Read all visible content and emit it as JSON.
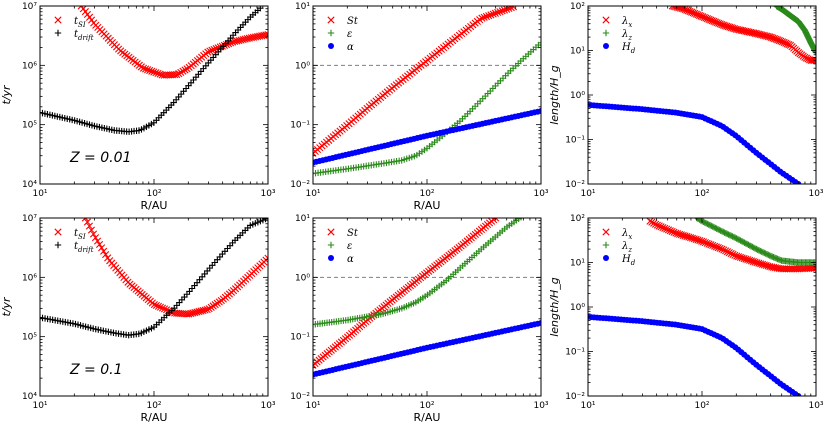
{
  "figure": {
    "colors": {
      "red": "#ff0000",
      "green": "#2a8a1a",
      "blue": "#0000ff",
      "black": "#000000",
      "ref": "#808080"
    }
  },
  "chart_data": [
    {
      "id": "p1",
      "type": "scatter",
      "row": 0,
      "col": 0,
      "xlabel": "R/AU",
      "ylabel": "t/yr",
      "xlim": [
        10,
        1000
      ],
      "ylim": [
        10000,
        10000000
      ],
      "xscale": "log",
      "yscale": "log",
      "xticklabels": [
        "10¹",
        "10²",
        "10³"
      ],
      "yticklabels": [
        "10⁴",
        "10⁵",
        "10⁶",
        "10⁷"
      ],
      "annotation": "Z = 0.01",
      "legend_position": "top-left",
      "series": [
        {
          "name": "t_SI",
          "label": "t",
          "sub": "SI",
          "marker": "x",
          "color": "red",
          "x": [
            23,
            30,
            50,
            80,
            120,
            160,
            200,
            300,
            500,
            700,
            1000
          ],
          "y": [
            10000000,
            5000000,
            1800000,
            900000,
            680000,
            700000,
            900000,
            1700000,
            2500000,
            2900000,
            3300000
          ]
        },
        {
          "name": "t_drift",
          "label": "t",
          "sub": "drift",
          "marker": "+",
          "color": "black",
          "x": [
            10,
            20,
            30,
            45,
            60,
            75,
            100,
            150,
            200,
            300,
            500,
            700,
            900
          ],
          "y": [
            160000,
            118000,
            95000,
            80000,
            76000,
            80000,
            108000,
            240000,
            450000,
            1100000,
            3300000,
            6500000,
            10000000
          ]
        }
      ]
    },
    {
      "id": "p2",
      "type": "scatter",
      "row": 0,
      "col": 1,
      "xlabel": "R/AU",
      "ylabel": "",
      "xlim": [
        10,
        1000
      ],
      "ylim": [
        0.01,
        10
      ],
      "xscale": "log",
      "yscale": "log",
      "xticklabels": [
        "10¹",
        "10²",
        "10³"
      ],
      "yticklabels": [
        "10⁻²",
        "10⁻¹",
        "10⁰",
        "10¹"
      ],
      "reference_line": 1,
      "legend_position": "top-left",
      "series": [
        {
          "name": "St",
          "label": "St",
          "sub": "",
          "marker": "x",
          "color": "red",
          "x": [
            10,
            20,
            30,
            50,
            100,
            200,
            300,
            600
          ],
          "y": [
            0.033,
            0.098,
            0.19,
            0.42,
            1.2,
            3.4,
            6.2,
            10
          ]
        },
        {
          "name": "epsilon",
          "label": "ε",
          "sub": "",
          "marker": "+",
          "color": "green",
          "x": [
            10,
            20,
            40,
            60,
            80,
            100,
            150,
            200,
            300,
            500,
            700,
            1000
          ],
          "y": [
            0.015,
            0.018,
            0.022,
            0.025,
            0.03,
            0.04,
            0.075,
            0.12,
            0.26,
            0.7,
            1.3,
            2.4
          ]
        },
        {
          "name": "alpha",
          "label": "α",
          "sub": "",
          "marker": "o",
          "color": "blue",
          "x": [
            10,
            100,
            1000
          ],
          "y": [
            0.023,
            0.065,
            0.17
          ]
        }
      ]
    },
    {
      "id": "p3",
      "type": "scatter",
      "row": 0,
      "col": 2,
      "xlabel": "",
      "ylabel": "length/H_g",
      "xlim": [
        10,
        1000
      ],
      "ylim": [
        0.01,
        100
      ],
      "xscale": "log",
      "yscale": "log",
      "xticklabels": [
        "10¹",
        "10²",
        "10³"
      ],
      "yticklabels": [
        "10⁻²",
        "10⁻¹",
        "10⁰",
        "10¹",
        "10²"
      ],
      "legend_position": "top-left",
      "series": [
        {
          "name": "lambda_x",
          "label": "λ",
          "sub": "x",
          "marker": "x",
          "color": "red",
          "x": [
            55,
            70,
            90,
            120,
            150,
            200,
            300,
            400,
            500,
            600,
            700,
            800,
            900,
            1000
          ],
          "y": [
            100,
            85,
            65,
            48,
            38,
            30,
            24,
            20,
            16,
            13,
            9,
            7,
            6,
            6
          ]
        },
        {
          "name": "lambda_z",
          "label": "λ",
          "sub": "z",
          "marker": "+",
          "color": "green",
          "x": [
            450,
            500,
            600,
            700,
            800,
            900,
            1000
          ],
          "y": [
            100,
            85,
            60,
            45,
            28,
            15,
            9
          ]
        },
        {
          "name": "H_d",
          "label": "H",
          "sub": "d",
          "marker": "o",
          "color": "blue",
          "x": [
            10,
            30,
            60,
            100,
            150,
            200,
            300,
            500,
            700
          ],
          "y": [
            0.6,
            0.48,
            0.4,
            0.32,
            0.2,
            0.12,
            0.05,
            0.018,
            0.01
          ]
        }
      ]
    },
    {
      "id": "p4",
      "type": "scatter",
      "row": 1,
      "col": 0,
      "xlabel": "R/AU",
      "ylabel": "t/yr",
      "xlim": [
        10,
        1000
      ],
      "ylim": [
        10000,
        10000000
      ],
      "xscale": "log",
      "yscale": "log",
      "xticklabels": [
        "10¹",
        "10²",
        "10³"
      ],
      "yticklabels": [
        "10⁴",
        "10⁵",
        "10⁶",
        "10⁷"
      ],
      "annotation": "Z = 0.1",
      "legend_position": "top-left",
      "series": [
        {
          "name": "t_SI",
          "label": "t",
          "sub": "SI",
          "marker": "x",
          "color": "red",
          "x": [
            25,
            30,
            40,
            60,
            100,
            150,
            200,
            300,
            400,
            500,
            700,
            1000
          ],
          "y": [
            10000000,
            5000000,
            2000000,
            800000,
            350000,
            250000,
            240000,
            290000,
            420000,
            600000,
            1100000,
            2100000
          ]
        },
        {
          "name": "t_drift",
          "label": "t",
          "sub": "drift",
          "marker": "+",
          "color": "black",
          "x": [
            10,
            20,
            30,
            45,
            60,
            75,
            100,
            150,
            200,
            300,
            500,
            700,
            1000
          ],
          "y": [
            210000,
            165000,
            135000,
            115000,
            106000,
            112000,
            145000,
            300000,
            550000,
            1350000,
            4000000,
            7500000,
            10000000
          ]
        }
      ]
    },
    {
      "id": "p5",
      "type": "scatter",
      "row": 1,
      "col": 1,
      "xlabel": "R/AU",
      "ylabel": "",
      "xlim": [
        10,
        1000
      ],
      "ylim": [
        0.01,
        10
      ],
      "xscale": "log",
      "yscale": "log",
      "xticklabels": [
        "10¹",
        "10²",
        "10³"
      ],
      "yticklabels": [
        "10⁻²",
        "10⁻¹",
        "10⁰",
        "10¹"
      ],
      "reference_line": 1,
      "legend_position": "top-left",
      "series": [
        {
          "name": "St",
          "label": "St",
          "sub": "",
          "marker": "x",
          "color": "red",
          "x": [
            10,
            20,
            30,
            50,
            100,
            200,
            400
          ],
          "y": [
            0.033,
            0.098,
            0.19,
            0.42,
            1.2,
            3.4,
            10
          ]
        },
        {
          "name": "epsilon",
          "label": "ε",
          "sub": "",
          "marker": "+",
          "color": "green",
          "x": [
            10,
            20,
            40,
            60,
            80,
            100,
            150,
            200,
            300,
            500,
            700
          ],
          "y": [
            0.16,
            0.19,
            0.24,
            0.3,
            0.38,
            0.5,
            0.9,
            1.5,
            3.0,
            7.0,
            11
          ]
        },
        {
          "name": "alpha",
          "label": "α",
          "sub": "",
          "marker": "o",
          "color": "blue",
          "x": [
            10,
            100,
            1000
          ],
          "y": [
            0.023,
            0.065,
            0.17
          ]
        }
      ]
    },
    {
      "id": "p6",
      "type": "scatter",
      "row": 1,
      "col": 2,
      "xlabel": "",
      "ylabel": "length/H_g",
      "xlim": [
        10,
        1000
      ],
      "ylim": [
        0.01,
        100
      ],
      "xscale": "log",
      "yscale": "log",
      "xticklabels": [
        "10¹",
        "10²",
        "10³"
      ],
      "yticklabels": [
        "10⁻²",
        "10⁻¹",
        "10⁰",
        "10¹",
        "10²"
      ],
      "legend_position": "top-left",
      "series": [
        {
          "name": "lambda_x",
          "label": "λ",
          "sub": "x",
          "marker": "x",
          "color": "red",
          "x": [
            35,
            40,
            50,
            60,
            80,
            100,
            150,
            200,
            300,
            400,
            500,
            700,
            1000
          ],
          "y": [
            85,
            70,
            55,
            45,
            36,
            30,
            20,
            14,
            10,
            8,
            7.2,
            7.2,
            7.5
          ]
        },
        {
          "name": "lambda_z",
          "label": "λ",
          "sub": "z",
          "marker": "+",
          "color": "green",
          "x": [
            90,
            100,
            150,
            200,
            300,
            400,
            500,
            700,
            1000
          ],
          "y": [
            100,
            85,
            50,
            35,
            20,
            14,
            11,
            10,
            10
          ]
        },
        {
          "name": "H_d",
          "label": "H",
          "sub": "d",
          "marker": "o",
          "color": "blue",
          "x": [
            10,
            30,
            60,
            100,
            150,
            200,
            300,
            500,
            700
          ],
          "y": [
            0.6,
            0.48,
            0.4,
            0.32,
            0.2,
            0.12,
            0.05,
            0.018,
            0.01
          ]
        }
      ]
    }
  ]
}
